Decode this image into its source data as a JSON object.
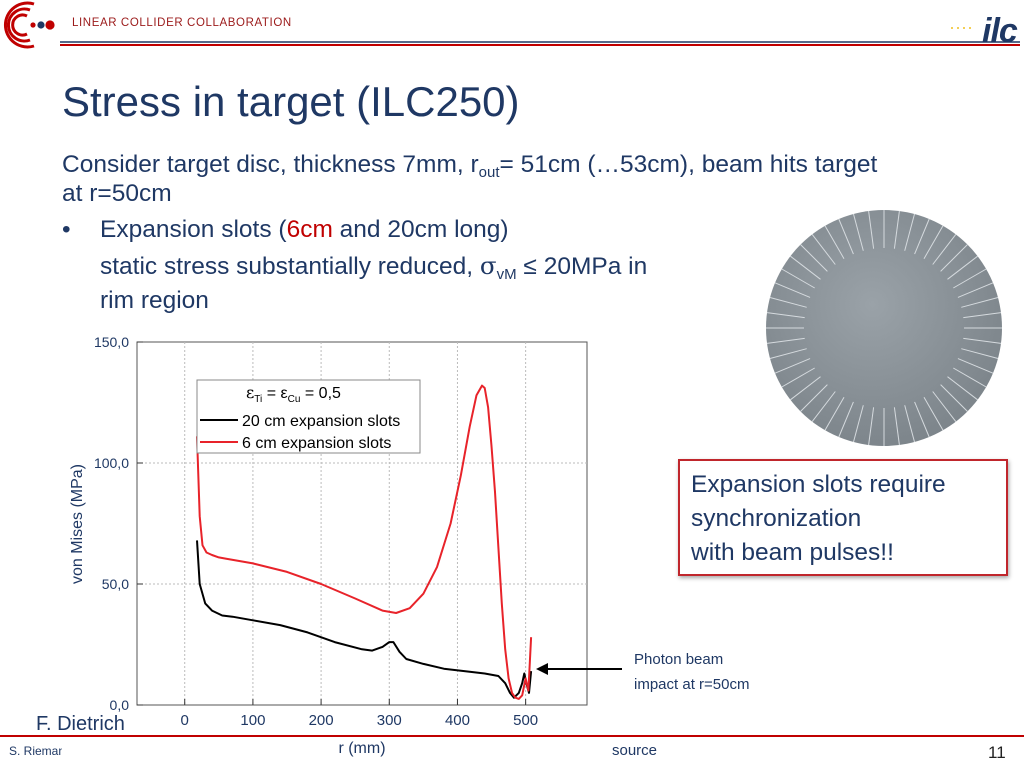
{
  "header": {
    "org": "LINEAR COLLIDER COLLABORATION",
    "brand_left_logo": "lcc-logo",
    "brand_right_logo": "ilc-logo",
    "brand_right_text": "ilc"
  },
  "title": "Stress in target (ILC250)",
  "intro": {
    "line1_a": "Consider target disc, thickness 7mm, r",
    "line1_sub": "out",
    "line1_b": "= 51cm (…53cm), beam hits target",
    "line2": "at r=50cm"
  },
  "bullet": {
    "marker": "•",
    "a": "Expansion slots (",
    "highlight": "6cm",
    "b": " and 20cm long)",
    "line2_a": "static stress substantially reduced, ",
    "sigma": "σ",
    "sigma_sub": "vM",
    "line2_b": " ≤ 20MPa in",
    "line3": "rim region"
  },
  "callout": {
    "line1": "Expansion slots require",
    "line2": "synchronization",
    "line3": "with beam pulses!!"
  },
  "annotation": {
    "line1": "Photon beam",
    "line2": "impact at r=50cm"
  },
  "author": "F. Dietrich",
  "footer": {
    "name": "S. Riemann",
    "source": "source",
    "page": "11"
  },
  "colors": {
    "red": "#e8232a",
    "navy": "#1f3864",
    "dark_red": "#c00000"
  },
  "chart_data": {
    "type": "line",
    "xlabel": "r (mm)",
    "ylabel": "von Mises (MPa)",
    "xlim": [
      -70,
      590
    ],
    "ylim": [
      0,
      150
    ],
    "xticks": [
      0,
      100,
      200,
      300,
      400,
      500
    ],
    "xtick_labels": [
      "0",
      "100",
      "200",
      "300",
      "400",
      "500"
    ],
    "yticks": [
      0,
      50,
      100,
      150
    ],
    "ytick_labels": [
      "0,0",
      "50,0",
      "100,0",
      "150,0"
    ],
    "legend": {
      "title_a": "ε",
      "title_sub1": "Ti",
      "title_b": " = ε",
      "title_sub2": "Cu",
      "title_c": " = 0,5",
      "entries": [
        "20 cm expansion slots",
        "6 cm expansion slots"
      ]
    },
    "series": [
      {
        "name": "20 cm expansion slots",
        "color": "#000000",
        "x": [
          18,
          22,
          30,
          40,
          55,
          70,
          100,
          140,
          180,
          220,
          260,
          275,
          290,
          300,
          306,
          315,
          325,
          350,
          380,
          410,
          440,
          460,
          470,
          477,
          483,
          490,
          495,
          498,
          501,
          505,
          508
        ],
        "y": [
          68,
          50,
          42,
          39,
          37,
          36.5,
          35,
          33,
          30,
          26,
          23,
          22.5,
          24,
          26,
          26,
          22,
          19,
          17,
          15,
          14,
          13,
          12,
          9,
          5,
          3,
          5,
          9,
          13,
          9,
          5,
          14
        ]
      },
      {
        "name": "6 cm expansion slots",
        "color": "#e8232a",
        "x": [
          18,
          22,
          26,
          32,
          40,
          50,
          60,
          100,
          150,
          200,
          250,
          290,
          310,
          330,
          350,
          370,
          390,
          405,
          418,
          428,
          436,
          440,
          445,
          450,
          455,
          460,
          465,
          470,
          475,
          480,
          485,
          490,
          495,
          500,
          504,
          508
        ],
        "y": [
          111,
          78,
          66,
          63,
          62,
          61,
          60.5,
          58.5,
          55,
          50,
          44,
          39,
          38,
          40,
          46,
          57,
          75,
          95,
          115,
          128,
          132,
          131,
          123,
          107,
          88,
          65,
          42,
          23,
          11,
          5,
          3,
          2.5,
          4,
          11,
          6,
          28
        ]
      }
    ]
  }
}
